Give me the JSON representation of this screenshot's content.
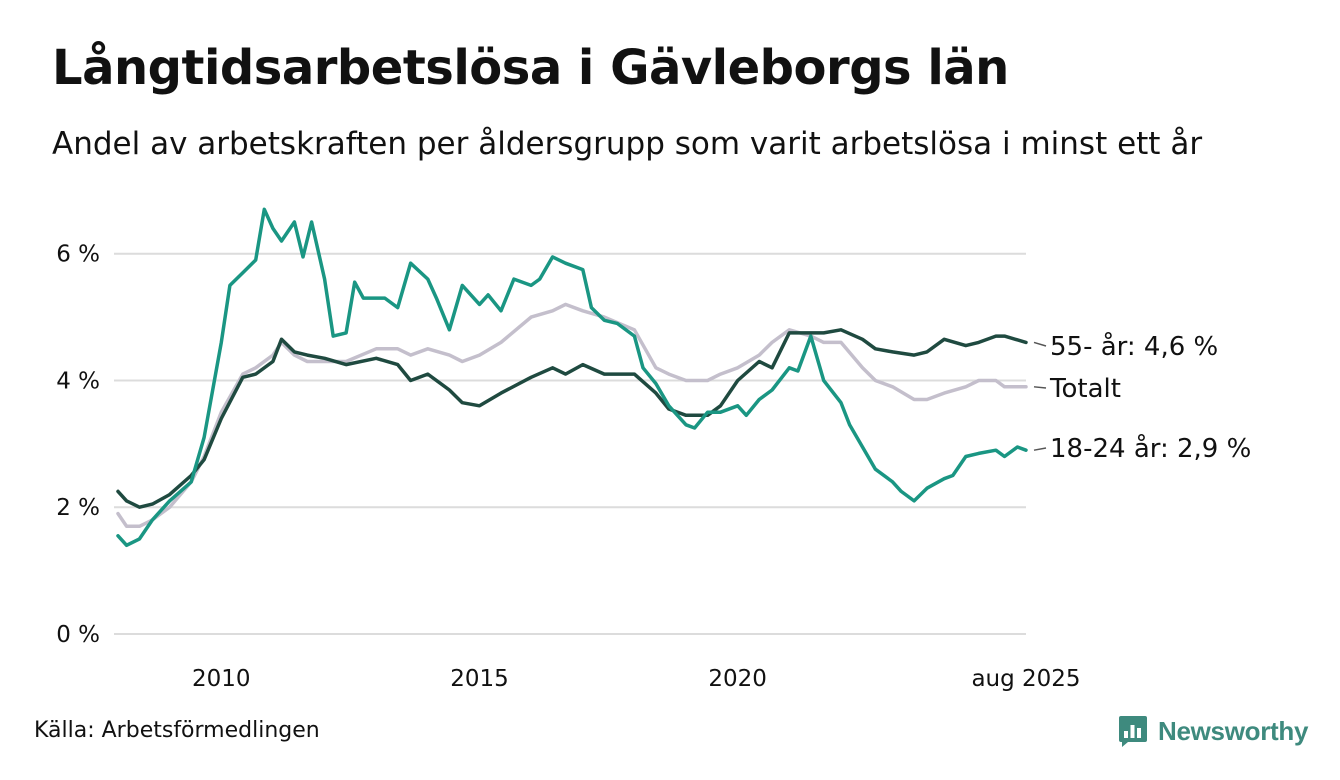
{
  "title": "Långtidsarbetslösa i Gävleborgs län",
  "subtitle": "Andel av arbetskraften per åldersgrupp som varit arbetslösa i minst ett år",
  "source": "Källa: Arbetsförmedlingen",
  "brand": {
    "name": "Newsworthy"
  },
  "chart_data": {
    "type": "line",
    "xlim": [
      "2008-01",
      "2025-08"
    ],
    "ylim": [
      0,
      6.8
    ],
    "y_ticks": [
      0,
      2,
      4,
      6
    ],
    "y_tick_labels": [
      "0 %",
      "2 %",
      "4 %",
      "6 %"
    ],
    "x_ticks": [
      "2010-01",
      "2015-01",
      "2020-01",
      "2025-08"
    ],
    "x_tick_labels": [
      "2010",
      "2015",
      "2020",
      "aug 2025"
    ],
    "grid": true,
    "series": [
      {
        "name": "Totalt",
        "end_label": "Totalt",
        "color": "#c4bfcc",
        "points": [
          [
            "2008-01",
            1.9
          ],
          [
            "2008-03",
            1.7
          ],
          [
            "2008-06",
            1.7
          ],
          [
            "2008-09",
            1.8
          ],
          [
            "2009-01",
            2.0
          ],
          [
            "2009-06",
            2.4
          ],
          [
            "2009-09",
            2.8
          ],
          [
            "2010-01",
            3.5
          ],
          [
            "2010-06",
            4.1
          ],
          [
            "2010-09",
            4.2
          ],
          [
            "2011-01",
            4.4
          ],
          [
            "2011-03",
            4.6
          ],
          [
            "2011-06",
            4.4
          ],
          [
            "2011-09",
            4.3
          ],
          [
            "2012-01",
            4.3
          ],
          [
            "2012-06",
            4.3
          ],
          [
            "2013-01",
            4.5
          ],
          [
            "2013-06",
            4.5
          ],
          [
            "2013-09",
            4.4
          ],
          [
            "2014-01",
            4.5
          ],
          [
            "2014-06",
            4.4
          ],
          [
            "2014-09",
            4.3
          ],
          [
            "2015-01",
            4.4
          ],
          [
            "2015-06",
            4.6
          ],
          [
            "2016-01",
            5.0
          ],
          [
            "2016-06",
            5.1
          ],
          [
            "2016-09",
            5.2
          ],
          [
            "2017-01",
            5.1
          ],
          [
            "2017-06",
            5.0
          ],
          [
            "2018-01",
            4.8
          ],
          [
            "2018-06",
            4.2
          ],
          [
            "2018-09",
            4.1
          ],
          [
            "2019-01",
            4.0
          ],
          [
            "2019-06",
            4.0
          ],
          [
            "2019-09",
            4.1
          ],
          [
            "2020-01",
            4.2
          ],
          [
            "2020-06",
            4.4
          ],
          [
            "2020-09",
            4.6
          ],
          [
            "2021-01",
            4.8
          ],
          [
            "2021-06",
            4.7
          ],
          [
            "2021-09",
            4.6
          ],
          [
            "2022-01",
            4.6
          ],
          [
            "2022-06",
            4.2
          ],
          [
            "2022-09",
            4.0
          ],
          [
            "2023-01",
            3.9
          ],
          [
            "2023-06",
            3.7
          ],
          [
            "2023-09",
            3.7
          ],
          [
            "2024-01",
            3.8
          ],
          [
            "2024-06",
            3.9
          ],
          [
            "2024-09",
            4.0
          ],
          [
            "2025-01",
            4.0
          ],
          [
            "2025-03",
            3.9
          ],
          [
            "2025-08",
            3.9
          ]
        ]
      },
      {
        "name": "55- år",
        "end_label": "55- år: 4,6 %",
        "color": "#1f4a40",
        "points": [
          [
            "2008-01",
            2.25
          ],
          [
            "2008-03",
            2.1
          ],
          [
            "2008-06",
            2.0
          ],
          [
            "2008-09",
            2.05
          ],
          [
            "2009-01",
            2.2
          ],
          [
            "2009-06",
            2.5
          ],
          [
            "2009-09",
            2.75
          ],
          [
            "2010-01",
            3.4
          ],
          [
            "2010-06",
            4.05
          ],
          [
            "2010-09",
            4.1
          ],
          [
            "2011-01",
            4.3
          ],
          [
            "2011-03",
            4.65
          ],
          [
            "2011-06",
            4.45
          ],
          [
            "2011-09",
            4.4
          ],
          [
            "2012-01",
            4.35
          ],
          [
            "2012-06",
            4.25
          ],
          [
            "2013-01",
            4.35
          ],
          [
            "2013-06",
            4.25
          ],
          [
            "2013-09",
            4.0
          ],
          [
            "2014-01",
            4.1
          ],
          [
            "2014-06",
            3.85
          ],
          [
            "2014-09",
            3.65
          ],
          [
            "2015-01",
            3.6
          ],
          [
            "2015-06",
            3.8
          ],
          [
            "2016-01",
            4.05
          ],
          [
            "2016-06",
            4.2
          ],
          [
            "2016-09",
            4.1
          ],
          [
            "2017-01",
            4.25
          ],
          [
            "2017-06",
            4.1
          ],
          [
            "2018-01",
            4.1
          ],
          [
            "2018-06",
            3.8
          ],
          [
            "2018-09",
            3.55
          ],
          [
            "2019-01",
            3.45
          ],
          [
            "2019-06",
            3.45
          ],
          [
            "2019-09",
            3.6
          ],
          [
            "2020-01",
            4.0
          ],
          [
            "2020-06",
            4.3
          ],
          [
            "2020-09",
            4.2
          ],
          [
            "2021-01",
            4.75
          ],
          [
            "2021-06",
            4.75
          ],
          [
            "2021-09",
            4.75
          ],
          [
            "2022-01",
            4.8
          ],
          [
            "2022-06",
            4.65
          ],
          [
            "2022-09",
            4.5
          ],
          [
            "2023-01",
            4.45
          ],
          [
            "2023-06",
            4.4
          ],
          [
            "2023-09",
            4.45
          ],
          [
            "2024-01",
            4.65
          ],
          [
            "2024-06",
            4.55
          ],
          [
            "2024-09",
            4.6
          ],
          [
            "2025-01",
            4.7
          ],
          [
            "2025-03",
            4.7
          ],
          [
            "2025-08",
            4.6
          ]
        ]
      },
      {
        "name": "18-24 år",
        "end_label": "18-24 år: 2,9 %",
        "color": "#1a9683",
        "points": [
          [
            "2008-01",
            1.55
          ],
          [
            "2008-03",
            1.4
          ],
          [
            "2008-06",
            1.5
          ],
          [
            "2008-09",
            1.8
          ],
          [
            "2009-01",
            2.1
          ],
          [
            "2009-06",
            2.4
          ],
          [
            "2009-09",
            3.1
          ],
          [
            "2010-01",
            4.6
          ],
          [
            "2010-03",
            5.5
          ],
          [
            "2010-06",
            5.7
          ],
          [
            "2010-09",
            5.9
          ],
          [
            "2010-11",
            6.7
          ],
          [
            "2011-01",
            6.4
          ],
          [
            "2011-03",
            6.2
          ],
          [
            "2011-06",
            6.5
          ],
          [
            "2011-08",
            5.95
          ],
          [
            "2011-10",
            6.5
          ],
          [
            "2012-01",
            5.6
          ],
          [
            "2012-03",
            4.7
          ],
          [
            "2012-06",
            4.75
          ],
          [
            "2012-08",
            5.55
          ],
          [
            "2012-10",
            5.3
          ],
          [
            "2013-01",
            5.3
          ],
          [
            "2013-03",
            5.3
          ],
          [
            "2013-06",
            5.15
          ],
          [
            "2013-09",
            5.85
          ],
          [
            "2014-01",
            5.6
          ],
          [
            "2014-03",
            5.3
          ],
          [
            "2014-06",
            4.8
          ],
          [
            "2014-09",
            5.5
          ],
          [
            "2015-01",
            5.2
          ],
          [
            "2015-03",
            5.35
          ],
          [
            "2015-06",
            5.1
          ],
          [
            "2015-09",
            5.6
          ],
          [
            "2016-01",
            5.5
          ],
          [
            "2016-03",
            5.6
          ],
          [
            "2016-06",
            5.95
          ],
          [
            "2016-09",
            5.85
          ],
          [
            "2017-01",
            5.75
          ],
          [
            "2017-03",
            5.15
          ],
          [
            "2017-06",
            4.95
          ],
          [
            "2017-09",
            4.9
          ],
          [
            "2018-01",
            4.7
          ],
          [
            "2018-03",
            4.2
          ],
          [
            "2018-06",
            3.95
          ],
          [
            "2018-09",
            3.6
          ],
          [
            "2019-01",
            3.3
          ],
          [
            "2019-03",
            3.25
          ],
          [
            "2019-06",
            3.5
          ],
          [
            "2019-09",
            3.5
          ],
          [
            "2020-01",
            3.6
          ],
          [
            "2020-03",
            3.45
          ],
          [
            "2020-06",
            3.7
          ],
          [
            "2020-09",
            3.85
          ],
          [
            "2021-01",
            4.2
          ],
          [
            "2021-03",
            4.15
          ],
          [
            "2021-06",
            4.7
          ],
          [
            "2021-09",
            4.0
          ],
          [
            "2022-01",
            3.65
          ],
          [
            "2022-03",
            3.3
          ],
          [
            "2022-06",
            2.95
          ],
          [
            "2022-09",
            2.6
          ],
          [
            "2023-01",
            2.4
          ],
          [
            "2023-03",
            2.25
          ],
          [
            "2023-06",
            2.1
          ],
          [
            "2023-09",
            2.3
          ],
          [
            "2024-01",
            2.45
          ],
          [
            "2024-03",
            2.5
          ],
          [
            "2024-06",
            2.8
          ],
          [
            "2024-09",
            2.85
          ],
          [
            "2025-01",
            2.9
          ],
          [
            "2025-03",
            2.8
          ],
          [
            "2025-06",
            2.95
          ],
          [
            "2025-08",
            2.9
          ]
        ]
      }
    ]
  }
}
